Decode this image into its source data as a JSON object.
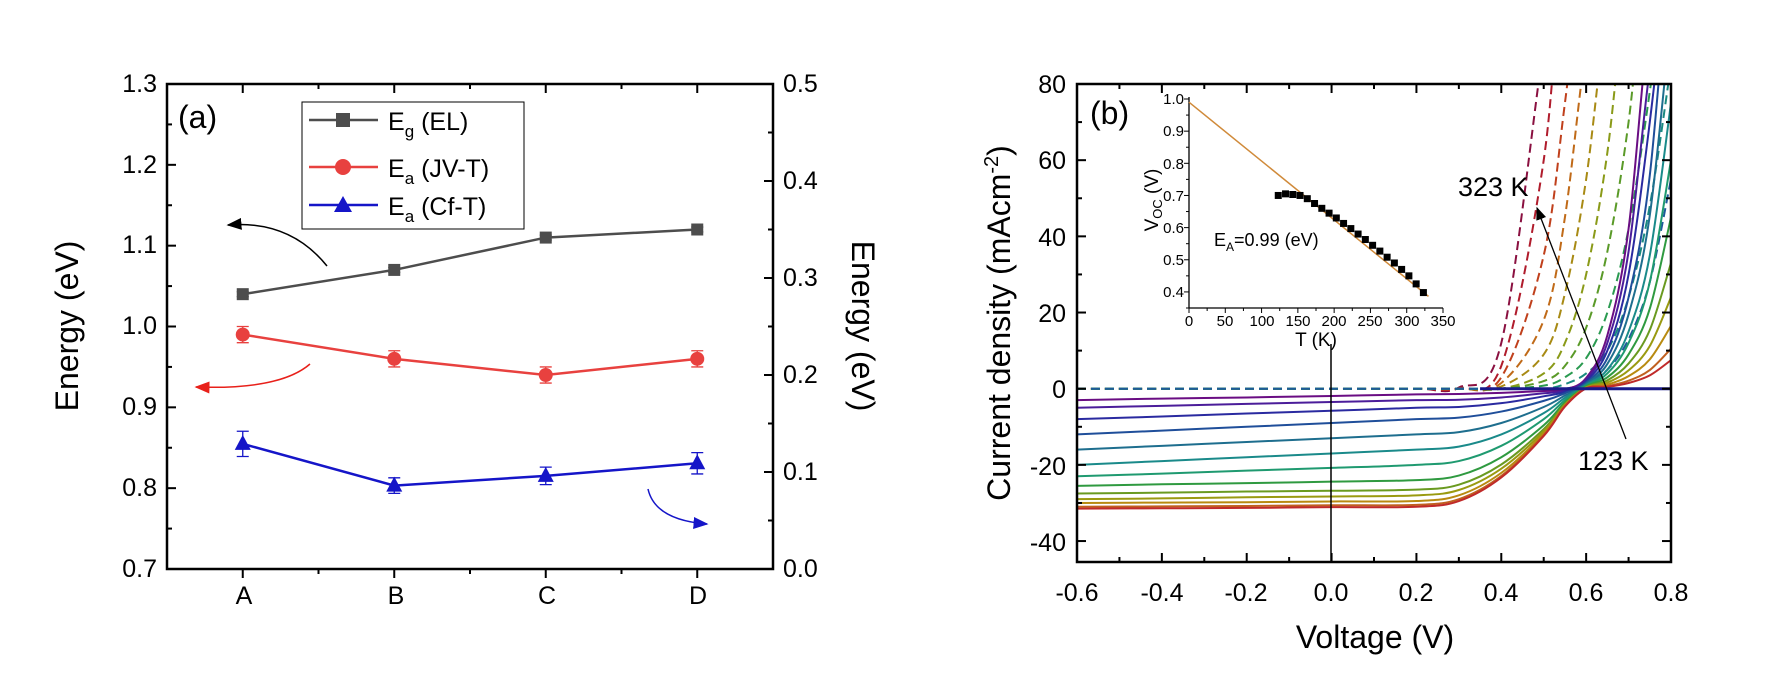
{
  "chart_data": [
    {
      "panel_label": "(a)",
      "type": "line",
      "categories": [
        "A",
        "B",
        "C",
        "D"
      ],
      "ylabel": "Energy (eV)",
      "ylabel_right": "Energy (eV)",
      "ylim": [
        0.7,
        1.3
      ],
      "ylim_right": [
        0.0,
        0.5
      ],
      "yticks": [
        "0.7",
        "0.8",
        "0.9",
        "1.0",
        "1.1",
        "1.2",
        "1.3"
      ],
      "yticks_right": [
        "0.0",
        "0.1",
        "0.2",
        "0.3",
        "0.4",
        "0.5"
      ],
      "grid": false,
      "legend_position": "top-center",
      "series": [
        {
          "name": "E",
          "sub": "g",
          "suffix": " (EL)",
          "axis": "left",
          "marker": "square",
          "color": "#4d4d4d",
          "values": [
            1.04,
            1.07,
            1.11,
            1.12
          ],
          "errors": [
            0.003,
            0.003,
            0.003,
            0.003
          ]
        },
        {
          "name": "E",
          "sub": "a",
          "suffix": " (JV-T)",
          "axis": "left",
          "marker": "circle",
          "color": "#e8413f",
          "values": [
            0.99,
            0.96,
            0.94,
            0.96
          ],
          "errors": [
            0.01,
            0.01,
            0.01,
            0.01
          ]
        },
        {
          "name": "E",
          "sub": "a",
          "suffix": " (Cf-T)",
          "axis": "right",
          "marker": "triangle",
          "color": "#1515c8",
          "values": [
            0.129,
            0.086,
            0.096,
            0.109
          ],
          "errors": [
            0.013,
            0.008,
            0.009,
            0.011
          ]
        }
      ]
    },
    {
      "panel_label": "(b)",
      "type": "line",
      "xlabel": "Voltage (V)",
      "ylabel": "Current density (mAcm",
      "ylabel_sup": "-2",
      "ylabel_end": ")",
      "xlim": [
        -0.6,
        0.8
      ],
      "ylim": [
        -45.5,
        80
      ],
      "xticks": [
        "-0.6",
        "-0.4",
        "-0.2",
        "0.0",
        "0.2",
        "0.4",
        "0.6",
        "0.8"
      ],
      "yticks": [
        "-40",
        "-20",
        "0",
        "20",
        "40",
        "60",
        "80"
      ],
      "grid": false,
      "annotations": {
        "high": "323 K",
        "low": "123 K"
      },
      "voltage": [
        -0.6,
        -0.4,
        -0.2,
        0,
        0.2,
        0.3,
        0.4,
        0.5,
        0.55,
        0.6,
        0.65,
        0.7,
        0.75,
        0.8
      ],
      "solid_series": [
        {
          "color": "#6a0d83",
          "values": [
            -3,
            -2.6,
            -2.3,
            -1.9,
            -1.5,
            -1.4,
            -1.1,
            -0.6,
            -0.2,
            2.8,
            14,
            42,
            98,
            210
          ]
        },
        {
          "color": "#4b1d9a",
          "values": [
            -5,
            -4.5,
            -4,
            -3.5,
            -3,
            -2.9,
            -2.3,
            -1.2,
            -0.5,
            2.4,
            12,
            36,
            84,
            180
          ]
        },
        {
          "color": "#2a2aa0",
          "values": [
            -8,
            -7.3,
            -6.5,
            -5.8,
            -5,
            -4.8,
            -3.8,
            -2,
            -0.8,
            2,
            10,
            30,
            70,
            150
          ]
        },
        {
          "color": "#1f4e9a",
          "values": [
            -12,
            -11,
            -10,
            -9,
            -8,
            -7.6,
            -6,
            -3.2,
            -1.2,
            1.6,
            8,
            24,
            56,
            120
          ]
        },
        {
          "color": "#1e6e8e",
          "values": [
            -16,
            -15,
            -14,
            -13,
            -12,
            -11.4,
            -9,
            -4.8,
            -1.8,
            1.3,
            6.5,
            19.5,
            45.5,
            97.5
          ]
        },
        {
          "color": "#1a8a8a",
          "values": [
            -20,
            -19,
            -18,
            -17,
            -16,
            -15.2,
            -12,
            -6.4,
            -2.4,
            1,
            5,
            15,
            35,
            75
          ]
        },
        {
          "color": "#1f9a70",
          "values": [
            -23,
            -22.3,
            -21.5,
            -20.8,
            -20,
            -19,
            -15,
            -8,
            -3,
            0.8,
            4,
            12,
            28,
            60
          ]
        },
        {
          "color": "#2f9a40",
          "values": [
            -25.5,
            -25.1,
            -24.8,
            -24.4,
            -24,
            -22.8,
            -18,
            -9.6,
            -3.6,
            0.6,
            3,
            9,
            21,
            45
          ]
        },
        {
          "color": "#6a9a20",
          "values": [
            -27.5,
            -27.3,
            -27,
            -26.8,
            -26.5,
            -25.2,
            -19.9,
            -10.6,
            -4,
            0.4,
            2.2,
            6.6,
            15.4,
            33
          ]
        },
        {
          "color": "#9a9a10",
          "values": [
            -29,
            -28.8,
            -28.5,
            -28.3,
            -28,
            -26.6,
            -21,
            -11.2,
            -4.2,
            0.3,
            1.6,
            4.8,
            11.2,
            24
          ]
        },
        {
          "color": "#b88a10",
          "values": [
            -30,
            -29.9,
            -29.8,
            -29.6,
            -29.5,
            -28,
            -22.1,
            -11.8,
            -4.4,
            0.2,
            1.1,
            3.3,
            7.7,
            16.5
          ]
        },
        {
          "color": "#c06020",
          "values": [
            -31,
            -30.9,
            -30.8,
            -30.6,
            -30.5,
            -29,
            -22.9,
            -12.2,
            -4.6,
            0.1,
            0.7,
            2.1,
            4.9,
            10.5
          ]
        },
        {
          "color": "#c02a2a",
          "values": [
            -31.5,
            -31.4,
            -31.3,
            -31.1,
            -31,
            -29.5,
            -23.3,
            -12.4,
            -4.7,
            0.1,
            0.5,
            1.5,
            3.5,
            7.5
          ]
        }
      ],
      "dashed_series": [
        {
          "color": "#8a1040",
          "values": [
            0,
            0,
            0,
            0,
            0,
            0.3,
            12,
            90,
            180,
            300,
            400,
            500,
            600,
            700
          ]
        },
        {
          "color": "#b01c2c",
          "values": [
            0,
            0,
            0,
            0,
            0,
            0.1,
            6,
            60,
            120,
            220,
            320,
            420,
            520,
            620
          ]
        },
        {
          "color": "#c0401c",
          "values": [
            0,
            0,
            0,
            0,
            0,
            0,
            3,
            35,
            75,
            130,
            220,
            320,
            420,
            520
          ]
        },
        {
          "color": "#c06a18",
          "values": [
            0,
            0,
            0,
            0,
            0,
            0,
            1.5,
            18,
            45,
            90,
            160,
            250,
            350,
            450
          ]
        },
        {
          "color": "#a88a14",
          "values": [
            0,
            0,
            0,
            0,
            0,
            0,
            0.6,
            9,
            25,
            55,
            100,
            170,
            260,
            360
          ]
        },
        {
          "color": "#8a9a18",
          "values": [
            0,
            0,
            0,
            0,
            0,
            0,
            0,
            4,
            12,
            30,
            62,
            110,
            180,
            270
          ]
        },
        {
          "color": "#5a9a28",
          "values": [
            0,
            0,
            0,
            0,
            0,
            0,
            0,
            2,
            6,
            16,
            36,
            70,
            120,
            190
          ]
        },
        {
          "color": "#2a9a50",
          "values": [
            0,
            0,
            0,
            0,
            0,
            0,
            0,
            0.8,
            3,
            8,
            20,
            42,
            78,
            130
          ]
        },
        {
          "color": "#1a8a80",
          "values": [
            0,
            0,
            0,
            0,
            0,
            0,
            0,
            0,
            1.2,
            4,
            10,
            24,
            48,
            85
          ]
        },
        {
          "color": "#1e5a9a",
          "values": [
            0,
            0,
            0,
            0,
            0,
            0,
            0,
            0,
            0,
            1.5,
            5,
            13,
            28,
            55
          ]
        }
      ],
      "flat_line_color": "#1a1a8a"
    },
    {
      "panel": "(b) inset",
      "type": "scatter",
      "xlabel": "T (K)",
      "ylabel": "V",
      "ylabel_sub": "OC",
      "ylabel_end": " (V)",
      "xlim": [
        0,
        350
      ],
      "ylim": [
        0.35,
        1.0
      ],
      "xticks": [
        "0",
        "50",
        "100",
        "150",
        "200",
        "250",
        "300",
        "350"
      ],
      "yticks": [
        "0.4",
        "0.5",
        "0.6",
        "0.7",
        "0.8",
        "0.9",
        "1.0"
      ],
      "annotation": {
        "main": "E",
        "sub": "A",
        "rest": "=0.99 (eV)"
      },
      "points": {
        "T": [
          123,
          133,
          143,
          153,
          163,
          173,
          183,
          193,
          203,
          213,
          223,
          233,
          243,
          253,
          263,
          273,
          283,
          293,
          303,
          313,
          323
        ],
        "Voc": [
          0.7,
          0.705,
          0.703,
          0.7,
          0.69,
          0.675,
          0.66,
          0.645,
          0.63,
          0.613,
          0.597,
          0.58,
          0.563,
          0.545,
          0.527,
          0.508,
          0.49,
          0.47,
          0.45,
          0.425,
          0.398
        ]
      },
      "fit": {
        "intercept": 0.99,
        "slope": -0.00183,
        "color": "#d08a3a"
      },
      "marker_color": "#000000"
    }
  ]
}
